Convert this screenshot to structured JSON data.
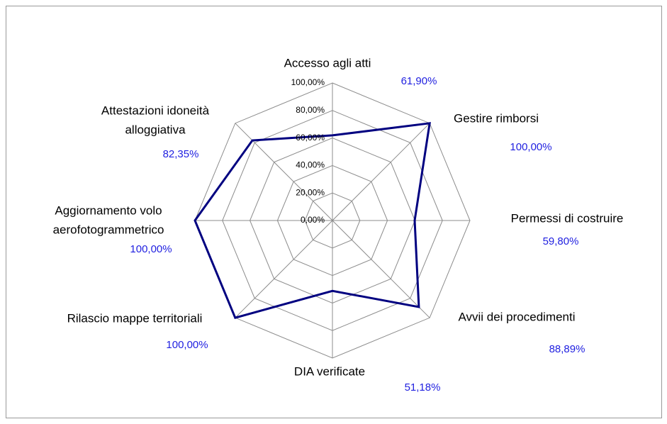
{
  "chart_data": {
    "type": "radar",
    "categories": [
      [
        "Accesso agli atti"
      ],
      [
        "Gestire rimborsi"
      ],
      [
        "Permessi di costruire"
      ],
      [
        "Avvii dei procedimenti"
      ],
      [
        "DIA verificate"
      ],
      [
        "Rilascio mappe territoriali"
      ],
      [
        "Aggiornamento volo",
        "aerofotogrammetrico"
      ],
      [
        "Attestazioni idoneità",
        "alloggiativa"
      ]
    ],
    "values": [
      61.9,
      100,
      59.8,
      88.89,
      51.18,
      100,
      100,
      82.35
    ],
    "value_labels": [
      "61,90%",
      "100,00%",
      "59,80%",
      "88,89%",
      "51,18%",
      "100,00%",
      "100,00%",
      "82,35%"
    ],
    "color": "#000080",
    "label_color": "#1f1fe0",
    "ylim": [
      0,
      100
    ],
    "yticks": [
      {
        "value": 0,
        "label": "0,00%"
      },
      {
        "value": 20,
        "label": "20,00%"
      },
      {
        "value": 40,
        "label": "40,00%"
      },
      {
        "value": 60,
        "label": "60,00%"
      },
      {
        "value": 80,
        "label": "80,00%"
      },
      {
        "value": 100,
        "label": "100,00%"
      }
    ],
    "grid": true
  }
}
